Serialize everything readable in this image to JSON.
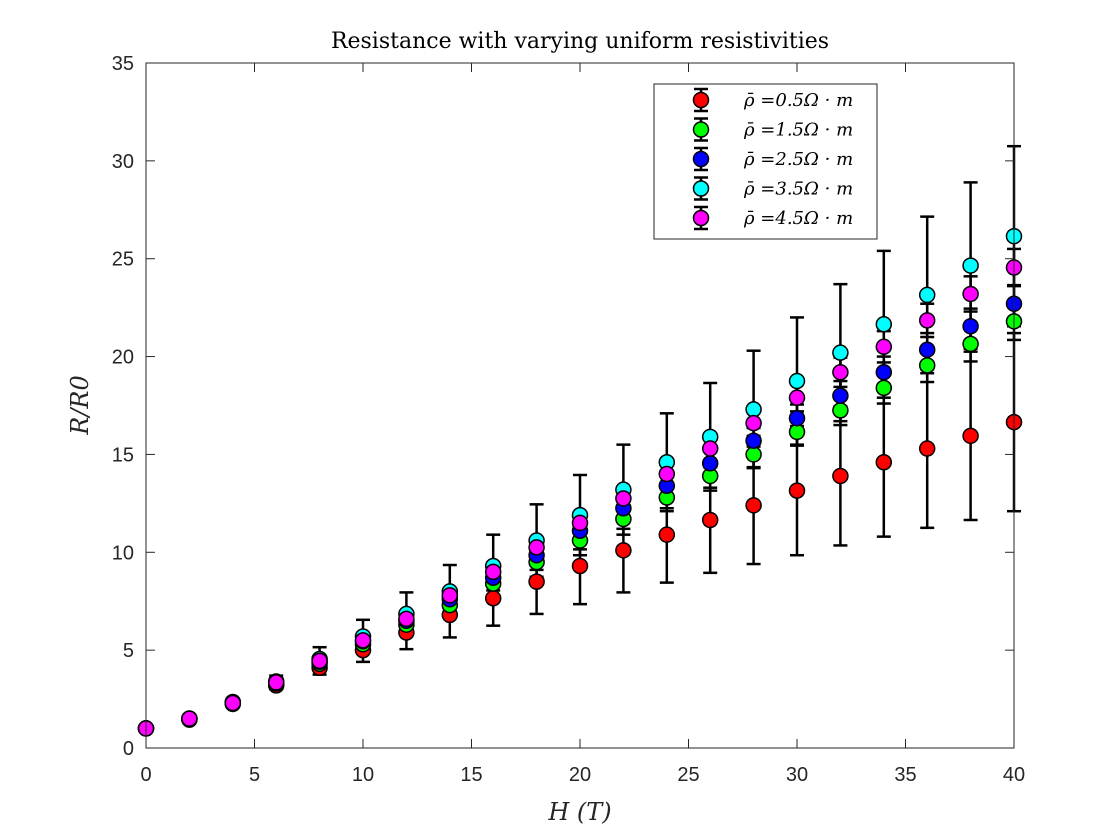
{
  "chart_data": {
    "type": "scatter",
    "title": "Resistance with varying uniform resistivities",
    "xlabel": "H (T)",
    "ylabel": "R/R0",
    "xlim": [
      0,
      40
    ],
    "ylim": [
      0,
      35
    ],
    "xticks": [
      0,
      5,
      10,
      15,
      20,
      25,
      30,
      35,
      40
    ],
    "yticks": [
      0,
      5,
      10,
      15,
      20,
      25,
      30,
      35
    ],
    "xtick_labels": [
      "0",
      "5",
      "10",
      "15",
      "20",
      "25",
      "30",
      "35",
      "40"
    ],
    "ytick_labels": [
      "0",
      "5",
      "10",
      "15",
      "20",
      "25",
      "30",
      "35"
    ],
    "grid": false,
    "legend_position": "top-right",
    "error_bars": true,
    "x": [
      0,
      2,
      4,
      6,
      8,
      10,
      12,
      14,
      16,
      18,
      20,
      22,
      24,
      26,
      28,
      30,
      32,
      34,
      36,
      38,
      40
    ],
    "series": [
      {
        "name": "ρ̄ =0.5Ω · m",
        "color": "#ff0000",
        "values": [
          1.0,
          1.45,
          2.25,
          3.2,
          4.1,
          5.0,
          5.9,
          6.8,
          7.65,
          8.5,
          9.3,
          10.1,
          10.9,
          11.65,
          12.4,
          13.15,
          13.9,
          14.6,
          15.3,
          15.95,
          16.65
        ],
        "errors": [
          0.0,
          0.05,
          0.1,
          0.2,
          0.35,
          0.6,
          0.85,
          1.15,
          1.4,
          1.65,
          1.95,
          2.15,
          2.45,
          2.7,
          3.0,
          3.3,
          3.55,
          3.8,
          4.05,
          4.3,
          4.55
        ]
      },
      {
        "name": "ρ̄ =1.5Ω · m",
        "color": "#00ff00",
        "values": [
          1.0,
          1.5,
          2.3,
          3.3,
          4.3,
          5.3,
          6.3,
          7.3,
          8.4,
          9.5,
          10.6,
          11.7,
          12.8,
          13.9,
          15.0,
          16.15,
          17.25,
          18.4,
          19.55,
          20.65,
          21.8
        ],
        "errors": [
          0.0,
          0.02,
          0.05,
          0.1,
          0.15,
          0.2,
          0.25,
          0.3,
          0.35,
          0.4,
          0.45,
          0.5,
          0.55,
          0.6,
          0.65,
          0.7,
          0.75,
          0.8,
          0.85,
          0.9,
          0.95
        ]
      },
      {
        "name": "ρ̄ =2.5Ω · m",
        "color": "#0000ff",
        "values": [
          1.0,
          1.5,
          2.3,
          3.3,
          4.4,
          5.45,
          6.5,
          7.6,
          8.7,
          9.85,
          11.1,
          12.25,
          13.4,
          14.55,
          15.7,
          16.85,
          18.0,
          19.2,
          20.35,
          21.55,
          22.7
        ],
        "errors": [
          0.0,
          0.02,
          0.05,
          0.1,
          0.15,
          0.2,
          0.25,
          0.3,
          0.35,
          0.4,
          0.45,
          0.5,
          0.55,
          0.6,
          0.65,
          0.7,
          0.75,
          0.8,
          0.85,
          0.9,
          0.95
        ]
      },
      {
        "name": "ρ̄ =3.5Ω · m",
        "color": "#00ffff",
        "values": [
          1.0,
          1.5,
          2.35,
          3.4,
          4.55,
          5.7,
          6.85,
          8.0,
          9.3,
          10.6,
          11.9,
          13.2,
          14.6,
          15.9,
          17.3,
          18.75,
          20.2,
          21.65,
          23.15,
          24.65,
          26.15
        ],
        "errors": [
          0.0,
          0.05,
          0.15,
          0.3,
          0.6,
          0.85,
          1.1,
          1.35,
          1.6,
          1.85,
          2.05,
          2.3,
          2.5,
          2.75,
          3.0,
          3.25,
          3.5,
          3.75,
          4.0,
          4.25,
          4.6
        ]
      },
      {
        "name": "ρ̄ =4.5Ω · m",
        "color": "#ff00ff",
        "values": [
          1.0,
          1.5,
          2.3,
          3.35,
          4.45,
          5.5,
          6.6,
          7.8,
          9.0,
          10.25,
          11.5,
          12.75,
          14.0,
          15.3,
          16.6,
          17.9,
          19.2,
          20.5,
          21.85,
          23.2,
          24.55
        ],
        "errors": [
          0.0,
          0.02,
          0.05,
          0.1,
          0.15,
          0.2,
          0.25,
          0.3,
          0.35,
          0.4,
          0.45,
          0.5,
          0.55,
          0.6,
          0.65,
          0.7,
          0.75,
          0.8,
          0.85,
          0.9,
          0.95
        ]
      }
    ]
  }
}
